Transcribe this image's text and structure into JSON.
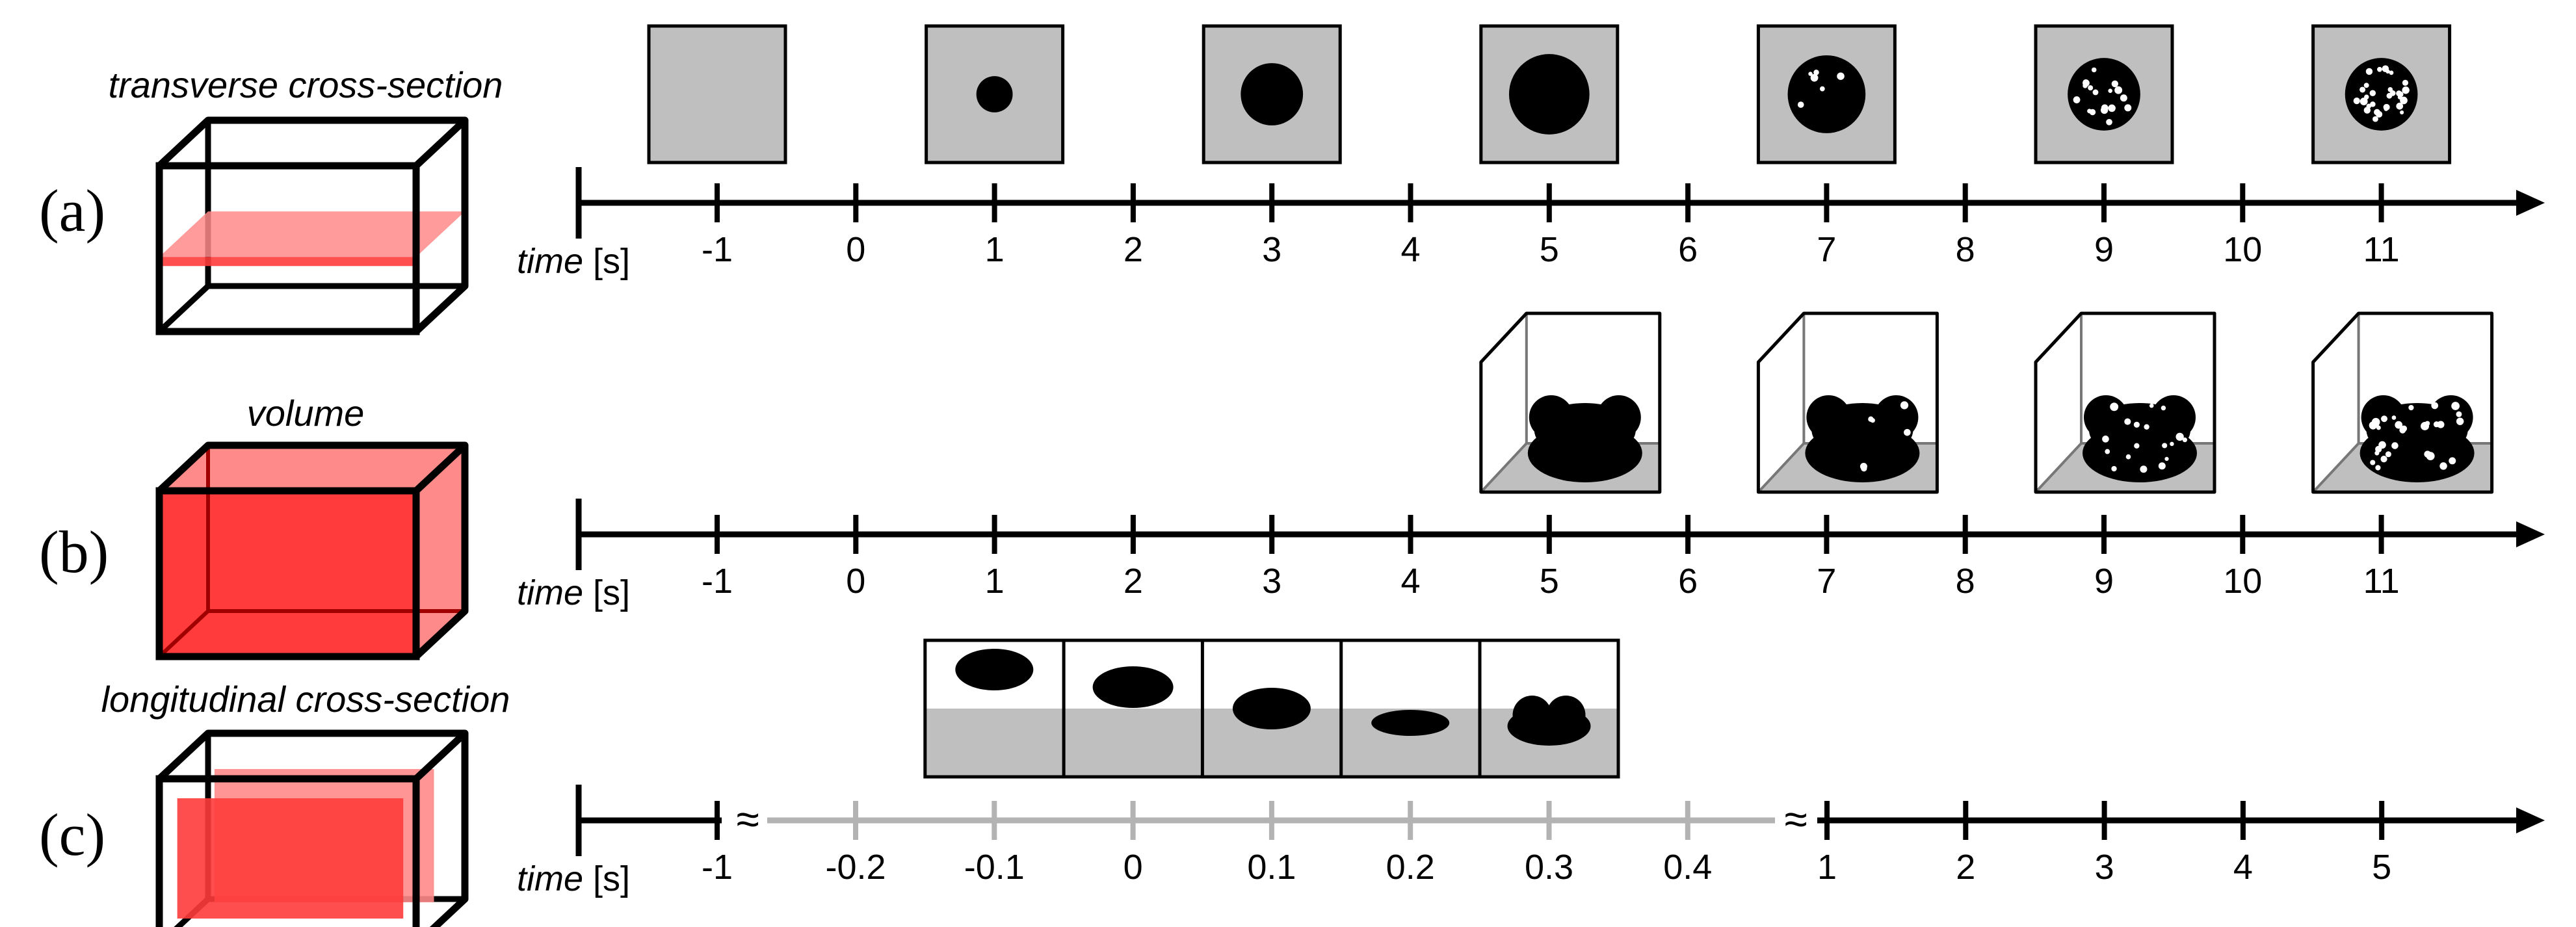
{
  "rows": [
    {
      "letter": "(a)",
      "label": "transverse cross-section",
      "time_label": {
        "word": "time",
        "unit": " [s]"
      },
      "ticks": [
        "-1",
        "0",
        "1",
        "2",
        "3",
        "4",
        "5",
        "6",
        "7",
        "8",
        "9",
        "10",
        "11"
      ],
      "snapshots": [
        {
          "at_tick": 0,
          "radius": 0,
          "holes": 0
        },
        {
          "at_tick": 2,
          "radius": 0.28,
          "holes": 0
        },
        {
          "at_tick": 4,
          "radius": 0.48,
          "holes": 0
        },
        {
          "at_tick": 6,
          "radius": 0.62,
          "holes": 0
        },
        {
          "at_tick": 8,
          "radius": 0.6,
          "holes": 6
        },
        {
          "at_tick": 10,
          "radius": 0.56,
          "holes": 18
        },
        {
          "at_tick": 12,
          "radius": 0.56,
          "holes": 30
        }
      ]
    },
    {
      "letter": "(b)",
      "label": "volume",
      "time_label": {
        "word": "time",
        "unit": " [s]"
      },
      "ticks": [
        "-1",
        "0",
        "1",
        "2",
        "3",
        "4",
        "5",
        "6",
        "7",
        "8",
        "9",
        "10",
        "11"
      ],
      "snapshots": [
        {
          "at_tick": 6,
          "holes": 0
        },
        {
          "at_tick": 8,
          "holes": 6
        },
        {
          "at_tick": 10,
          "holes": 18
        },
        {
          "at_tick": 12,
          "holes": 30
        }
      ]
    },
    {
      "letter": "(c)",
      "label": "longitudinal cross-section",
      "time_label": {
        "word": "time",
        "unit": " [s]"
      },
      "break_mark": "≈",
      "ticks_left": [
        "-1"
      ],
      "ticks_zoom": [
        "-0.2",
        "-0.1",
        "0",
        "0.1",
        "0.2",
        "0.3",
        "0.4"
      ],
      "ticks_right": [
        "1",
        "2",
        "3",
        "4",
        "5"
      ],
      "snapshots": [
        {
          "at_tick": "-0.1",
          "shape": "ellipse-high"
        },
        {
          "at_tick": "0",
          "shape": "ellipse-mid"
        },
        {
          "at_tick": "0.1",
          "shape": "ellipse-touch"
        },
        {
          "at_tick": "0.2",
          "shape": "ellipse-flat"
        },
        {
          "at_tick": "0.3",
          "shape": "double-lobe"
        }
      ]
    }
  ],
  "colors": {
    "ink": "#000000",
    "grey_panel": "#bfbfbf",
    "zoom_axis": "#b3b3b3",
    "red_strong": "#ff3b3b",
    "red_light": "#ff8a8a",
    "white": "#ffffff"
  }
}
